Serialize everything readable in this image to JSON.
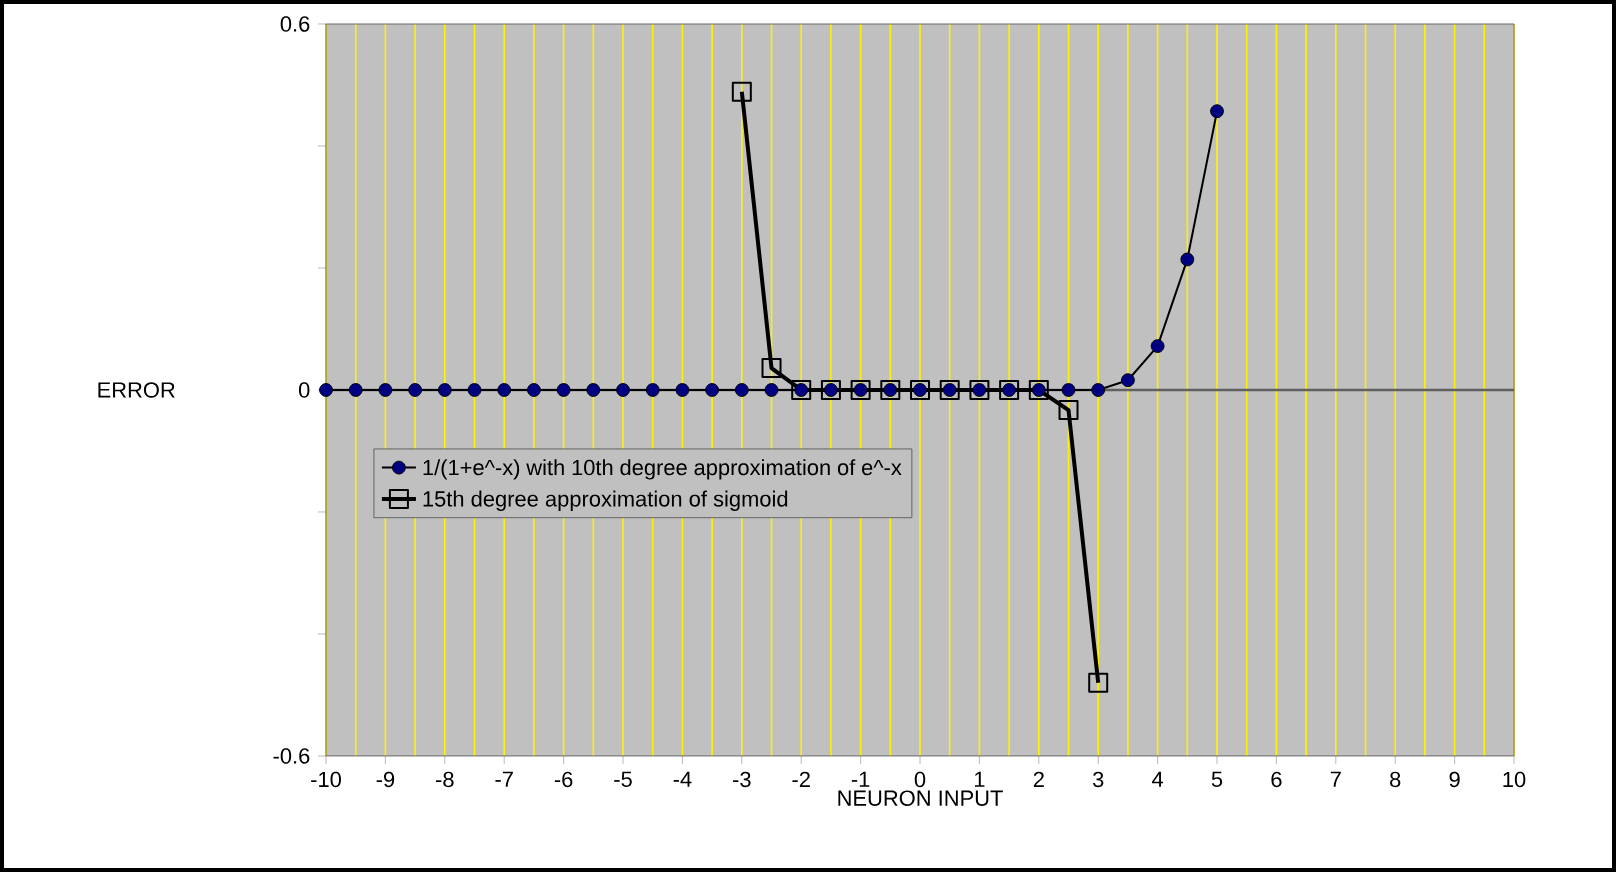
{
  "chart_data": {
    "type": "line",
    "xlabel": "NEURON INPUT",
    "ylabel": "ERROR",
    "xlim": [
      -10,
      10
    ],
    "xticks": [
      -10,
      -9,
      -8,
      -7,
      -6,
      -5,
      -4,
      -3,
      -2,
      -1,
      0,
      1,
      2,
      3,
      4,
      5,
      6,
      7,
      8,
      9,
      10
    ],
    "ylim": [
      -0.6,
      0.6
    ],
    "yticks": [
      -0.6,
      {
        "value": -0.4,
        "label": null
      },
      {
        "value": -0.2,
        "label": null
      },
      0,
      {
        "value": 0.2,
        "label": null
      },
      {
        "value": 0.4,
        "label": null
      },
      0.6
    ],
    "grid": "x",
    "legend": "bottom left",
    "ref_lines": [
      {
        "axis": "y",
        "value": 0,
        "color": "#606060"
      }
    ],
    "series": [
      {
        "name": "1/(1+e^-x) with 10th degree approximation of e^-x",
        "color": "#000080",
        "marker": "circle",
        "x": [
          -10,
          -9.5,
          -9,
          -8.5,
          -8,
          -7.5,
          -7,
          -6.5,
          -6,
          -5.5,
          -5,
          -4.5,
          -4,
          -3.5,
          -3,
          -2.5,
          -2,
          -1.5,
          -1,
          -0.5,
          0,
          0.5,
          1,
          1.5,
          2,
          2.5,
          3,
          3.5,
          4,
          4.5,
          5
        ],
        "values": [
          0,
          0,
          0,
          0,
          0,
          0,
          0,
          0,
          0,
          0,
          0,
          0,
          0,
          0,
          0,
          0,
          0,
          0,
          0,
          0,
          0,
          0,
          0,
          0,
          0,
          0,
          0,
          0.016,
          0.072,
          0.214,
          0.457
        ]
      },
      {
        "name": "15th degree approximation of sigmoid",
        "color": "#000000",
        "marker": "square",
        "x": [
          -3,
          -2.5,
          -2,
          -1.5,
          -1,
          -0.5,
          0,
          0.5,
          1,
          1.5,
          2,
          2.5,
          3
        ],
        "values": [
          0.489,
          0.036,
          0,
          0,
          0,
          0,
          0,
          0,
          0,
          0,
          0,
          -0.033,
          -0.48
        ]
      }
    ]
  }
}
